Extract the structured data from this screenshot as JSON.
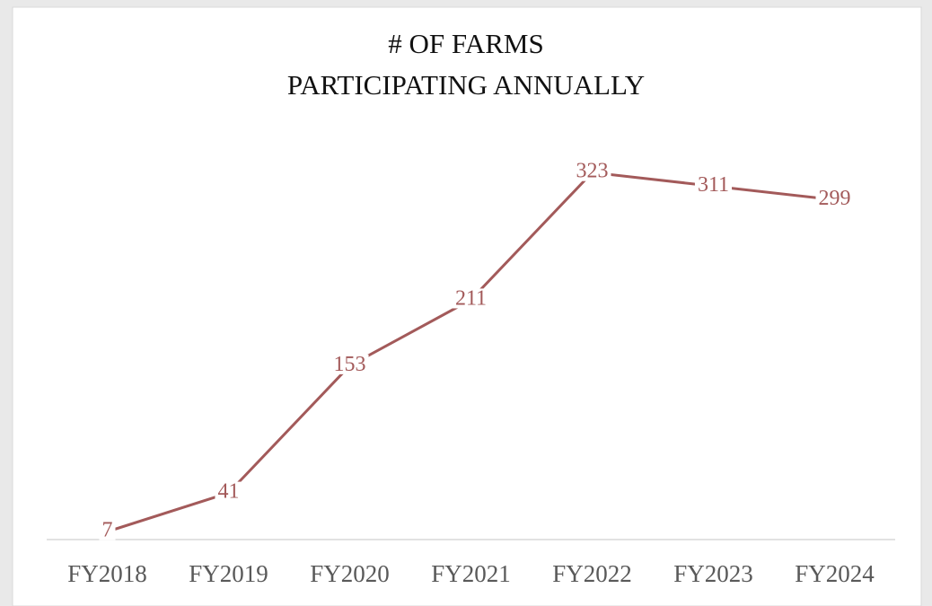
{
  "chart_data": {
    "type": "line",
    "title": [
      "# OF FARMS",
      "PARTICIPATING ANNUALLY"
    ],
    "categories": [
      "FY2018",
      "FY2019",
      "FY2020",
      "FY2021",
      "FY2022",
      "FY2023",
      "FY2024"
    ],
    "series": [
      {
        "color": "#a35a5a",
        "values": [
          7,
          41,
          153,
          211,
          323,
          311,
          299
        ]
      }
    ],
    "ylim": [
      0,
      350
    ]
  }
}
